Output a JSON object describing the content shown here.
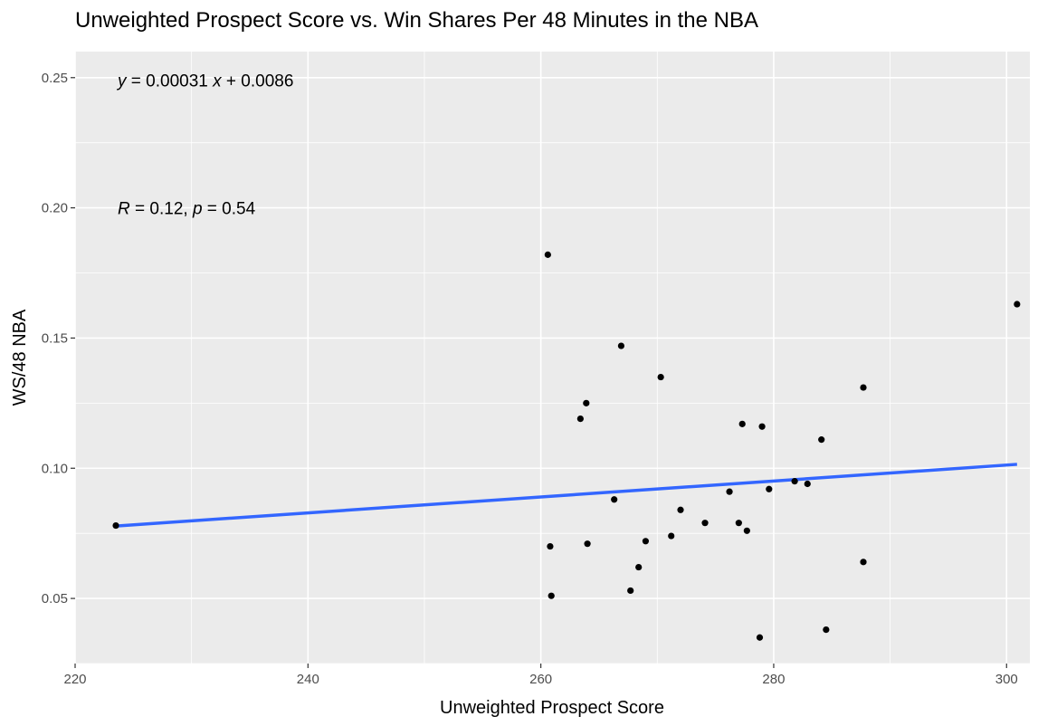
{
  "chart_data": {
    "type": "scatter",
    "title": "Unweighted Prospect Score vs. Win Shares Per 48 Minutes in the NBA",
    "xlabel": "Unweighted Prospect Score",
    "ylabel": "WS/48 NBA",
    "xlim": [
      220,
      302
    ],
    "ylim": [
      0.025,
      0.26
    ],
    "x_ticks": [
      220,
      240,
      260,
      280,
      300
    ],
    "x_tick_labels": [
      "220",
      "240",
      "260",
      "280",
      "300"
    ],
    "y_ticks": [
      0.05,
      0.1,
      0.15,
      0.2,
      0.25
    ],
    "y_tick_labels": [
      "0.05",
      "0.10",
      "0.15",
      "0.20",
      "0.25"
    ],
    "grid": true,
    "point_color": "#000000",
    "line_color": "#3366ff",
    "panel_color": "#ebebeb",
    "grid_color": "#ffffff",
    "points": [
      {
        "x": 223.5,
        "y": 0.078
      },
      {
        "x": 260.6,
        "y": 0.182
      },
      {
        "x": 260.8,
        "y": 0.07
      },
      {
        "x": 260.9,
        "y": 0.051
      },
      {
        "x": 263.4,
        "y": 0.119
      },
      {
        "x": 263.9,
        "y": 0.125
      },
      {
        "x": 264.0,
        "y": 0.071
      },
      {
        "x": 266.3,
        "y": 0.088
      },
      {
        "x": 266.9,
        "y": 0.147
      },
      {
        "x": 267.7,
        "y": 0.053
      },
      {
        "x": 268.4,
        "y": 0.062
      },
      {
        "x": 269.0,
        "y": 0.072
      },
      {
        "x": 270.3,
        "y": 0.135
      },
      {
        "x": 271.2,
        "y": 0.074
      },
      {
        "x": 272.0,
        "y": 0.084
      },
      {
        "x": 274.1,
        "y": 0.079
      },
      {
        "x": 276.2,
        "y": 0.091
      },
      {
        "x": 277.0,
        "y": 0.079
      },
      {
        "x": 277.3,
        "y": 0.117
      },
      {
        "x": 277.7,
        "y": 0.076
      },
      {
        "x": 278.8,
        "y": 0.035
      },
      {
        "x": 279.0,
        "y": 0.116
      },
      {
        "x": 279.6,
        "y": 0.092
      },
      {
        "x": 281.8,
        "y": 0.095
      },
      {
        "x": 282.9,
        "y": 0.094
      },
      {
        "x": 284.1,
        "y": 0.111
      },
      {
        "x": 284.5,
        "y": 0.038
      },
      {
        "x": 287.7,
        "y": 0.131
      },
      {
        "x": 287.7,
        "y": 0.064
      },
      {
        "x": 300.9,
        "y": 0.163
      }
    ],
    "regression": {
      "x_start": 223.5,
      "y_start": 0.0778,
      "x_end": 300.9,
      "y_end": 0.1015
    },
    "annotations": {
      "equation": {
        "y_var": "y",
        "eq_part1": " = 0.00031 ",
        "x_var": "x",
        "eq_part2": " + 0.0086",
        "x": 223.5,
        "y": 0.249
      },
      "correlation": {
        "r_var": "R",
        "r_part": " = 0.12, ",
        "p_var": "p",
        "p_part": " = 0.54",
        "x": 223.5,
        "y": 0.2
      }
    }
  }
}
